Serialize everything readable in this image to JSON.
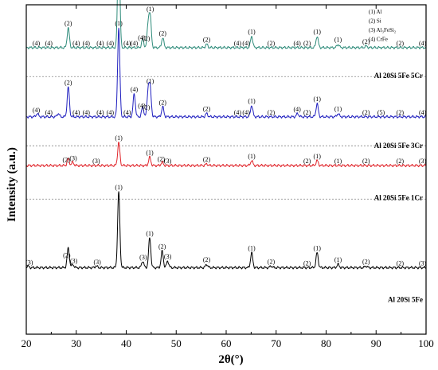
{
  "chart_data": {
    "type": "line",
    "xlabel": "2θ(°)",
    "ylabel": "Intensity (a.u.)",
    "xlim": [
      20,
      100
    ],
    "xticks": [
      20,
      30,
      40,
      50,
      60,
      70,
      80,
      90,
      100
    ],
    "ylim": [
      0,
      1
    ],
    "grid": false,
    "legend": [
      "(1) Al",
      "(2) Si",
      "(3) Al₃FeSi₂",
      "(4) CrFe"
    ],
    "legend_position": "top-right",
    "series": [
      {
        "name": "Al 20Si 5Fe 5Cr",
        "color": "#2e8b7a",
        "baseline": 0.87,
        "peaks": [
          [
            28.4,
            0.06
          ],
          [
            38.5,
            0.34
          ],
          [
            43.3,
            0.025
          ],
          [
            44.4,
            0.07
          ],
          [
            44.8,
            0.09
          ],
          [
            47.3,
            0.03
          ],
          [
            56.1,
            0.01
          ],
          [
            65.1,
            0.035
          ],
          [
            78.2,
            0.035
          ],
          [
            82.4,
            0.01
          ],
          [
            88.0,
            0.005
          ]
        ],
        "annotations": [
          [
            22,
            "(4)"
          ],
          [
            24.5,
            "(4)"
          ],
          [
            28.4,
            "(2)"
          ],
          [
            30,
            "(4)"
          ],
          [
            32,
            "(4)"
          ],
          [
            34.8,
            "(4)"
          ],
          [
            36.8,
            "(4)"
          ],
          [
            38.5,
            "(1)"
          ],
          [
            40.2,
            "(4)"
          ],
          [
            41.6,
            "(4)"
          ],
          [
            43.1,
            "(4)"
          ],
          [
            44.0,
            "(2)"
          ],
          [
            44.8,
            "(1)"
          ],
          [
            47.3,
            "(2)"
          ],
          [
            56.1,
            "(2)"
          ],
          [
            62.3,
            "(4)"
          ],
          [
            64.0,
            "(4)"
          ],
          [
            65.1,
            "(1)"
          ],
          [
            69.0,
            "(2)"
          ],
          [
            74.2,
            "(4)"
          ],
          [
            76.2,
            "(2)"
          ],
          [
            78.2,
            "(1)"
          ],
          [
            82.4,
            "(1)"
          ],
          [
            88.0,
            "(2)"
          ],
          [
            94.8,
            "(2)"
          ],
          [
            99.3,
            "(4)"
          ]
        ]
      },
      {
        "name": "Al 20Si 5Fe 3Cr",
        "color": "#1f1fbf",
        "baseline": 0.66,
        "peaks": [
          [
            22.2,
            0.01
          ],
          [
            26.4,
            0.01
          ],
          [
            28.4,
            0.09
          ],
          [
            38.5,
            0.27
          ],
          [
            41.6,
            0.07
          ],
          [
            43.3,
            0.03
          ],
          [
            44.4,
            0.08
          ],
          [
            44.8,
            0.08
          ],
          [
            47.3,
            0.03
          ],
          [
            56.1,
            0.01
          ],
          [
            65.1,
            0.035
          ],
          [
            74.3,
            0.01
          ],
          [
            78.2,
            0.04
          ],
          [
            82.4,
            0.01
          ]
        ],
        "annotations": [
          [
            22,
            "(4)"
          ],
          [
            24.5,
            "(4)"
          ],
          [
            28.4,
            "(2)"
          ],
          [
            30,
            "(4)"
          ],
          [
            32,
            "(4)"
          ],
          [
            34.8,
            "(4)"
          ],
          [
            36.8,
            "(4)"
          ],
          [
            38.5,
            "(1)"
          ],
          [
            40.2,
            "(4)"
          ],
          [
            41.6,
            "(4)"
          ],
          [
            43.1,
            "(4)"
          ],
          [
            44.0,
            "(2)"
          ],
          [
            44.8,
            "(1)"
          ],
          [
            47.3,
            "(2)"
          ],
          [
            56.1,
            "(2)"
          ],
          [
            62.3,
            "(4)"
          ],
          [
            64.0,
            "(4)"
          ],
          [
            65.1,
            "(1)"
          ],
          [
            69.0,
            "(2)"
          ],
          [
            74.2,
            "(4)"
          ],
          [
            76.2,
            "(2)"
          ],
          [
            78.2,
            "(1)"
          ],
          [
            82.4,
            "(1)"
          ],
          [
            88.0,
            "(2)"
          ],
          [
            91.0,
            "(5)"
          ],
          [
            94.8,
            "(2)"
          ],
          [
            99.3,
            "(4)"
          ]
        ]
      },
      {
        "name": "Al 20Si 5Fe 1Cr",
        "color": "#e0242a",
        "baseline": 0.512,
        "peaks": [
          [
            28.4,
            0.02
          ],
          [
            29.3,
            0.01
          ],
          [
            38.5,
            0.07
          ],
          [
            44.7,
            0.025
          ],
          [
            47.2,
            0.01
          ],
          [
            56.1,
            0.005
          ],
          [
            65.1,
            0.015
          ],
          [
            78.2,
            0.015
          ]
        ],
        "annotations": [
          [
            28.0,
            "(2)"
          ],
          [
            29.4,
            "(3)"
          ],
          [
            34.0,
            "(3)"
          ],
          [
            38.5,
            "(1)"
          ],
          [
            44.7,
            "(1)"
          ],
          [
            47.0,
            "(2)"
          ],
          [
            48.3,
            "(3)"
          ],
          [
            56.1,
            "(2)"
          ],
          [
            65.1,
            "(1)"
          ],
          [
            76.2,
            "(2)"
          ],
          [
            78.2,
            "(1)"
          ],
          [
            82.4,
            "(1)"
          ],
          [
            88.0,
            "(2)"
          ],
          [
            94.8,
            "(2)"
          ],
          [
            99.3,
            "(3)"
          ]
        ]
      },
      {
        "name": "Al 20Si 5Fe",
        "color": "#000000",
        "baseline": 0.202,
        "peaks": [
          [
            20.3,
            0.005
          ],
          [
            28.4,
            0.06
          ],
          [
            29.3,
            0.01
          ],
          [
            34.0,
            0.005
          ],
          [
            38.5,
            0.23
          ],
          [
            43.3,
            0.02
          ],
          [
            44.7,
            0.09
          ],
          [
            47.2,
            0.05
          ],
          [
            48.3,
            0.02
          ],
          [
            56.1,
            0.01
          ],
          [
            65.1,
            0.045
          ],
          [
            69.0,
            0.005
          ],
          [
            78.2,
            0.045
          ],
          [
            82.4,
            0.01
          ],
          [
            88.0,
            0.005
          ]
        ],
        "annotations": [
          [
            20.6,
            "(3)"
          ],
          [
            28.1,
            "(2)"
          ],
          [
            29.5,
            "(3)"
          ],
          [
            34.2,
            "(3)"
          ],
          [
            38.5,
            "(1)"
          ],
          [
            43.4,
            "(3)"
          ],
          [
            44.7,
            "(1)"
          ],
          [
            47.2,
            "(2)"
          ],
          [
            48.3,
            "(3)"
          ],
          [
            56.1,
            "(2)"
          ],
          [
            65.1,
            "(1)"
          ],
          [
            69.0,
            "(2)"
          ],
          [
            76.2,
            "(2)"
          ],
          [
            78.2,
            "(1)"
          ],
          [
            82.4,
            "(1)"
          ],
          [
            88.0,
            "(2)"
          ],
          [
            94.8,
            "(2)"
          ],
          [
            99.3,
            "(3)"
          ]
        ]
      }
    ]
  }
}
